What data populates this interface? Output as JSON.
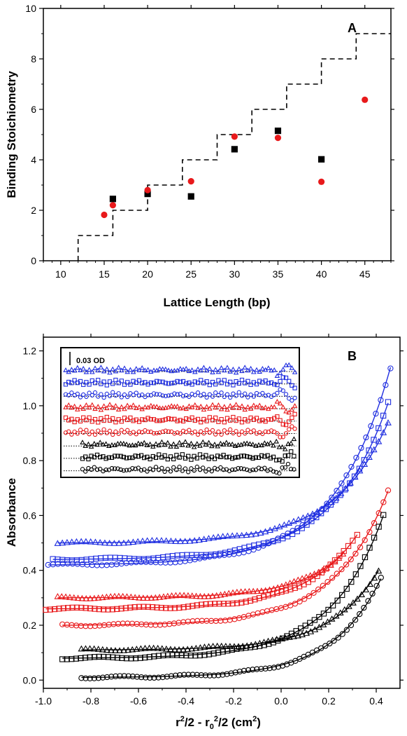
{
  "chart_data": [
    {
      "type": "scatter",
      "panel_label": "A",
      "xlabel": "Lattice Length (bp)",
      "ylabel": "Binding Stoichiometry",
      "xlim": [
        8,
        48
      ],
      "ylim": [
        0,
        10
      ],
      "xticks": [
        10,
        15,
        20,
        25,
        30,
        35,
        40,
        45
      ],
      "yticks": [
        0,
        2,
        4,
        6,
        8,
        10
      ],
      "series": [
        {
          "marker": "square",
          "color": "#000000",
          "x": [
            16,
            20,
            25,
            30,
            35,
            40
          ],
          "y": [
            2.45,
            2.65,
            2.55,
            4.42,
            5.15,
            4.02
          ]
        },
        {
          "marker": "circle",
          "color": "#e8191b",
          "x": [
            15,
            16,
            20,
            25,
            30,
            35,
            40,
            45
          ],
          "y": [
            1.82,
            2.2,
            2.8,
            3.15,
            4.92,
            4.87,
            3.13,
            6.38
          ]
        },
        {
          "kind": "step-line",
          "style": "dashed",
          "color": "#000000",
          "x": [
            12,
            12,
            16,
            16,
            20,
            20,
            24,
            24,
            28,
            28,
            32,
            32,
            36,
            36,
            40,
            40,
            44,
            44,
            48
          ],
          "y": [
            0,
            1,
            1,
            2,
            2,
            3,
            3,
            4,
            4,
            5,
            5,
            6,
            6,
            7,
            7,
            8,
            8,
            9,
            9
          ]
        }
      ]
    },
    {
      "type": "scatter",
      "panel_label": "B",
      "xlabel_parts": [
        "r",
        "2",
        "/2 - r",
        "0",
        "2",
        "/2 (cm",
        "2",
        ")"
      ],
      "ylabel": "Absorbance",
      "xlim": [
        -1.0,
        0.5
      ],
      "ylim": [
        -0.03,
        1.25
      ],
      "xticks": [
        "-1.0",
        "-0.8",
        "-0.6",
        "-0.4",
        "-0.2",
        "0.0",
        "0.2",
        "0.4"
      ],
      "yticks": [
        "0.0",
        "0.2",
        "0.4",
        "0.6",
        "0.8",
        "1.0",
        "1.2"
      ],
      "series": [
        {
          "color": "#1f2ee0",
          "marker": "circle",
          "x_range": [
            -0.98,
            0.46
          ],
          "y0": 0.42,
          "y_end": 1.14
        },
        {
          "color": "#1f2ee0",
          "marker": "square",
          "x_range": [
            -0.96,
            0.45
          ],
          "y0": 0.44,
          "y_end": 1.01
        },
        {
          "color": "#1f2ee0",
          "marker": "triangle",
          "x_range": [
            -0.94,
            0.45
          ],
          "y0": 0.5,
          "y_end": 0.94
        },
        {
          "color": "#e8191b",
          "marker": "circle",
          "x_range": [
            -0.92,
            0.45
          ],
          "y0": 0.2,
          "y_end": 0.69
        },
        {
          "color": "#e8191b",
          "marker": "square",
          "x_range": [
            -0.99,
            0.32
          ],
          "y0": 0.26,
          "y_end": 0.53
        },
        {
          "color": "#e8191b",
          "marker": "triangle",
          "x_range": [
            -0.94,
            0.26
          ],
          "y0": 0.3,
          "y_end": 0.46
        },
        {
          "color": "#000000",
          "marker": "square",
          "x_range": [
            -0.92,
            0.43
          ],
          "y0": 0.08,
          "y_end": 0.6
        },
        {
          "color": "#000000",
          "marker": "triangle",
          "x_range": [
            -0.84,
            0.41
          ],
          "y0": 0.11,
          "y_end": 0.4
        },
        {
          "color": "#000000",
          "marker": "circle",
          "x_range": [
            -0.84,
            0.42
          ],
          "y0": 0.01,
          "y_end": 0.37
        }
      ],
      "inset": {
        "scale_label": "0.03 OD",
        "rows": [
          {
            "color": "#1f2ee0",
            "marker": "triangle"
          },
          {
            "color": "#1f2ee0",
            "marker": "square"
          },
          {
            "color": "#1f2ee0",
            "marker": "circle"
          },
          {
            "color": "#e8191b",
            "marker": "triangle"
          },
          {
            "color": "#e8191b",
            "marker": "square"
          },
          {
            "color": "#e8191b",
            "marker": "circle"
          },
          {
            "color": "#000000",
            "marker": "triangle"
          },
          {
            "color": "#000000",
            "marker": "square"
          },
          {
            "color": "#000000",
            "marker": "circle"
          }
        ]
      }
    }
  ]
}
